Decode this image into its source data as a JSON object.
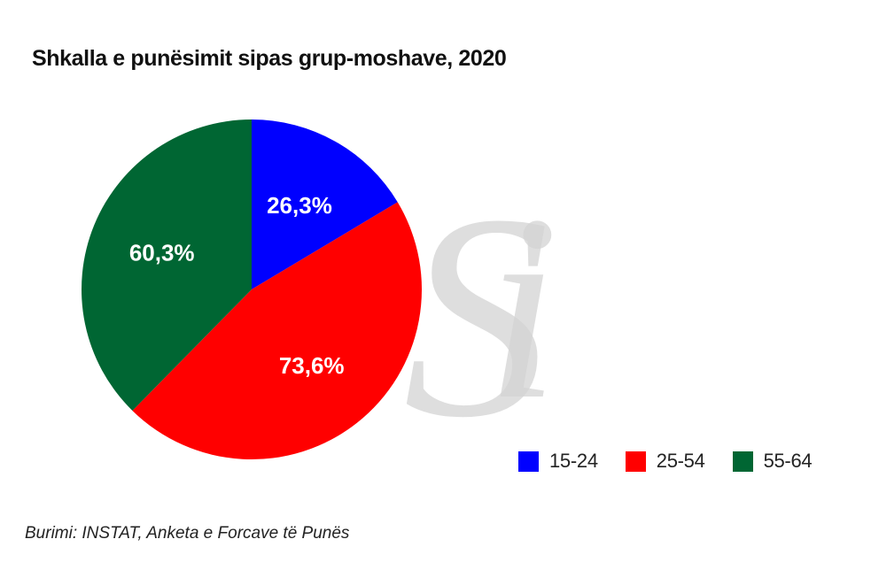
{
  "chart_data": {
    "type": "pie",
    "title": "Shkalla e punësimit sipas grup-moshave, 2020",
    "source": "Burimi: INSTAT, Anketa e Forcave të Punës",
    "watermark": "Si",
    "legend_position": "bottom-right",
    "slices": [
      {
        "name": "15-24",
        "value": 26.3,
        "label": "26,3%",
        "color": "#0000FF"
      },
      {
        "name": "25-54",
        "value": 73.6,
        "label": "73,6%",
        "color": "#FF0000"
      },
      {
        "name": "55-64",
        "value": 60.3,
        "label": "60,3%",
        "color": "#006633"
      }
    ]
  }
}
